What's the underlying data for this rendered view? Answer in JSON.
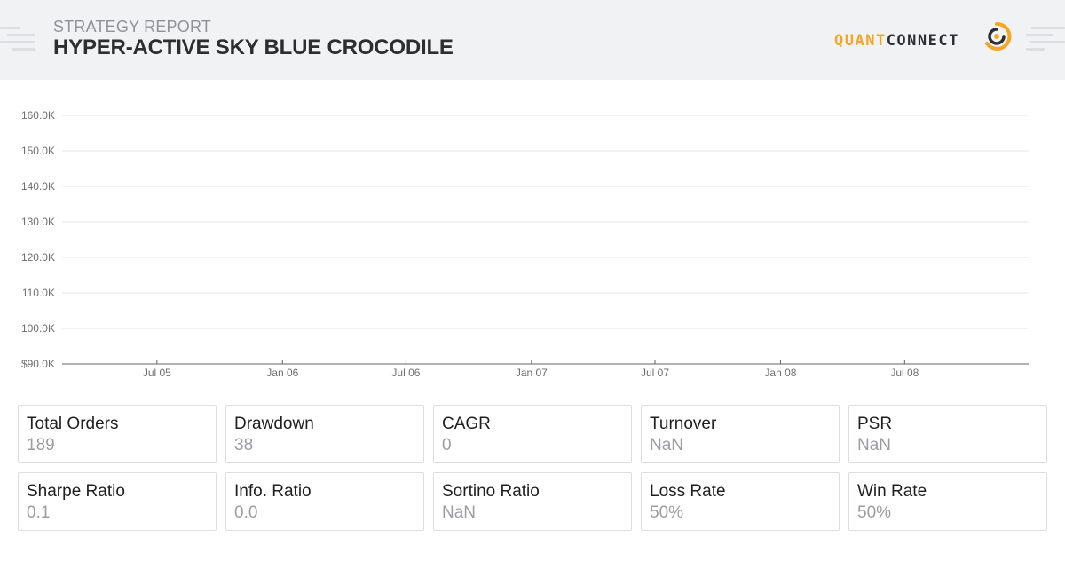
{
  "header": {
    "report_label": "STRATEGY REPORT",
    "title": "HYPER-ACTIVE SKY BLUE CROCODILE",
    "logo_part1": "QUANT",
    "logo_part2": "CONNECT",
    "logo_colors": {
      "accent": "#f5a623",
      "dark": "#2b2e33"
    }
  },
  "chart_data": {
    "type": "line",
    "title": "",
    "xlabel": "",
    "ylabel": "",
    "grid": true,
    "series": [],
    "ylim": [
      90000,
      160000
    ],
    "y_ticks": [
      {
        "value": 160000,
        "label": "160.0K"
      },
      {
        "value": 150000,
        "label": "150.0K"
      },
      {
        "value": 140000,
        "label": "140.0K"
      },
      {
        "value": 130000,
        "label": "130.0K"
      },
      {
        "value": 120000,
        "label": "120.0K"
      },
      {
        "value": 110000,
        "label": "110.0K"
      },
      {
        "value": 100000,
        "label": "100.0K"
      },
      {
        "value": 90000,
        "label": "$90.0K"
      }
    ],
    "xlim": [
      "2005-02-12",
      "2008-12-31"
    ],
    "x_ticks": [
      {
        "date": "2005-07-01",
        "label": "Jul 05"
      },
      {
        "date": "2006-01-01",
        "label": "Jan 06"
      },
      {
        "date": "2006-07-01",
        "label": "Jul 06"
      },
      {
        "date": "2007-01-01",
        "label": "Jan 07"
      },
      {
        "date": "2007-07-01",
        "label": "Jul 07"
      },
      {
        "date": "2008-01-01",
        "label": "Jan 08"
      },
      {
        "date": "2008-07-01",
        "label": "Jul 08"
      }
    ]
  },
  "metrics": [
    {
      "label": "Total Orders",
      "value": "189"
    },
    {
      "label": "Drawdown",
      "value": "38"
    },
    {
      "label": "CAGR",
      "value": "0"
    },
    {
      "label": "Turnover",
      "value": "NaN"
    },
    {
      "label": "PSR",
      "value": "NaN"
    },
    {
      "label": "Sharpe Ratio",
      "value": "0.1"
    },
    {
      "label": "Info. Ratio",
      "value": "0.0"
    },
    {
      "label": "Sortino Ratio",
      "value": "NaN"
    },
    {
      "label": "Loss Rate",
      "value": "50%"
    },
    {
      "label": "Win Rate",
      "value": "50%"
    }
  ]
}
